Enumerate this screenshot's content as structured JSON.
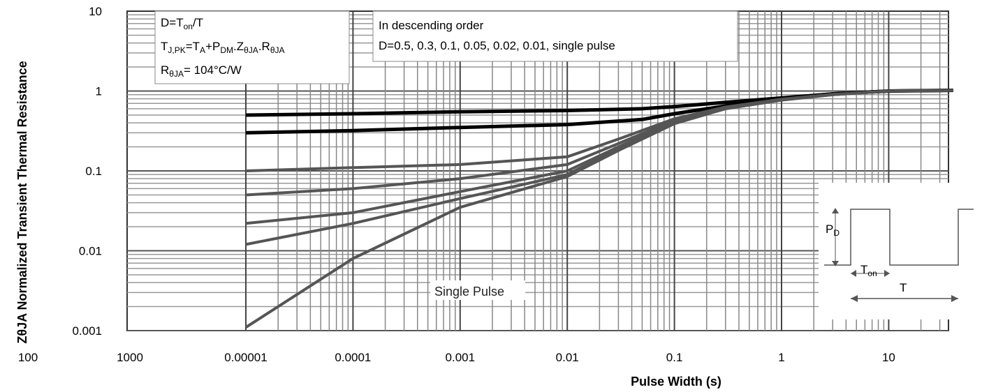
{
  "chart_data": {
    "type": "line",
    "title": "",
    "xlabel": "Pulse Width (s)",
    "ylabel": "ZθJA Normalized Transient Thermal Resistance",
    "xscale": "log",
    "yscale": "log",
    "xlim": [
      1e-05,
      40
    ],
    "ylim": [
      0.001,
      10
    ],
    "x_tick_labels": [
      "100",
      "1000",
      "0.00001",
      "0.0001",
      "0.001",
      "0.01",
      "0.1",
      "1",
      "10"
    ],
    "x_tick_values": [
      null,
      null,
      1e-05,
      0.0001,
      0.001,
      0.01,
      0.1,
      1,
      10
    ],
    "y_tick_labels": [
      "10",
      "1",
      "0.1",
      "0.01",
      "0.001"
    ],
    "y_tick_values": [
      10,
      1,
      0.1,
      0.01,
      0.001
    ],
    "grid": true,
    "legend": "none",
    "notes_left": {
      "line1": {
        "main": "D=T",
        "sub1": "on",
        "tail": "/T"
      },
      "line2": {
        "a": "T",
        "a_sub": "J,PK",
        "b": "=T",
        "b_sub": "A",
        "c": "+P",
        "c_sub": "DM",
        "d": ".Z",
        "d_sub": "θJA",
        "e": ".R",
        "e_sub": "θJA"
      },
      "line3": {
        "a": "R",
        "a_sub": "θJA",
        "b": "= 104°C/W"
      }
    },
    "notes_right": {
      "line1": "In descending order",
      "line2": "D=0.5, 0.3, 0.1, 0.05, 0.02, 0.01, single pulse"
    },
    "single_pulse_label": "Single Pulse",
    "waveform": {
      "pdm_main": "P",
      "pdm_sub": "D",
      "ton_main": "T",
      "ton_sub": "on",
      "t_label": "T"
    },
    "series": [
      {
        "name": "D=0.5",
        "x": [
          1e-05,
          0.0001,
          0.001,
          0.01,
          0.05,
          0.1,
          0.3,
          1,
          3,
          10,
          40
        ],
        "y": [
          0.5,
          0.52,
          0.55,
          0.57,
          0.6,
          0.64,
          0.72,
          0.82,
          0.92,
          1.0,
          1.02
        ]
      },
      {
        "name": "D=0.3",
        "x": [
          1e-05,
          0.0001,
          0.001,
          0.01,
          0.05,
          0.1,
          0.3,
          1,
          3,
          10,
          40
        ],
        "y": [
          0.3,
          0.32,
          0.35,
          0.38,
          0.44,
          0.52,
          0.65,
          0.8,
          0.92,
          1.0,
          1.02
        ]
      },
      {
        "name": "D=0.1",
        "x": [
          1e-05,
          0.0001,
          0.001,
          0.01,
          0.03,
          0.1,
          0.3,
          1,
          3,
          10,
          40
        ],
        "y": [
          0.1,
          0.11,
          0.12,
          0.15,
          0.25,
          0.45,
          0.63,
          0.79,
          0.91,
          1.0,
          1.02
        ]
      },
      {
        "name": "D=0.05",
        "x": [
          1e-05,
          0.0001,
          0.001,
          0.01,
          0.03,
          0.1,
          0.3,
          1,
          3,
          10,
          40
        ],
        "y": [
          0.05,
          0.06,
          0.08,
          0.12,
          0.22,
          0.43,
          0.62,
          0.78,
          0.9,
          1.0,
          1.02
        ]
      },
      {
        "name": "D=0.02",
        "x": [
          1e-05,
          0.0001,
          0.001,
          0.01,
          0.03,
          0.1,
          0.3,
          1,
          3,
          10,
          40
        ],
        "y": [
          0.022,
          0.03,
          0.055,
          0.1,
          0.2,
          0.41,
          0.61,
          0.78,
          0.9,
          1.0,
          1.02
        ]
      },
      {
        "name": "D=0.01",
        "x": [
          1e-05,
          0.0001,
          0.001,
          0.01,
          0.03,
          0.1,
          0.3,
          1,
          3,
          10,
          40
        ],
        "y": [
          0.012,
          0.022,
          0.045,
          0.09,
          0.19,
          0.4,
          0.6,
          0.77,
          0.9,
          1.0,
          1.02
        ]
      },
      {
        "name": "single pulse",
        "x": [
          1e-05,
          0.0001,
          0.001,
          0.01,
          0.03,
          0.1,
          0.3,
          1,
          3,
          10,
          40
        ],
        "y": [
          0.0011,
          0.008,
          0.035,
          0.085,
          0.18,
          0.39,
          0.6,
          0.77,
          0.9,
          1.0,
          1.02
        ]
      }
    ]
  }
}
